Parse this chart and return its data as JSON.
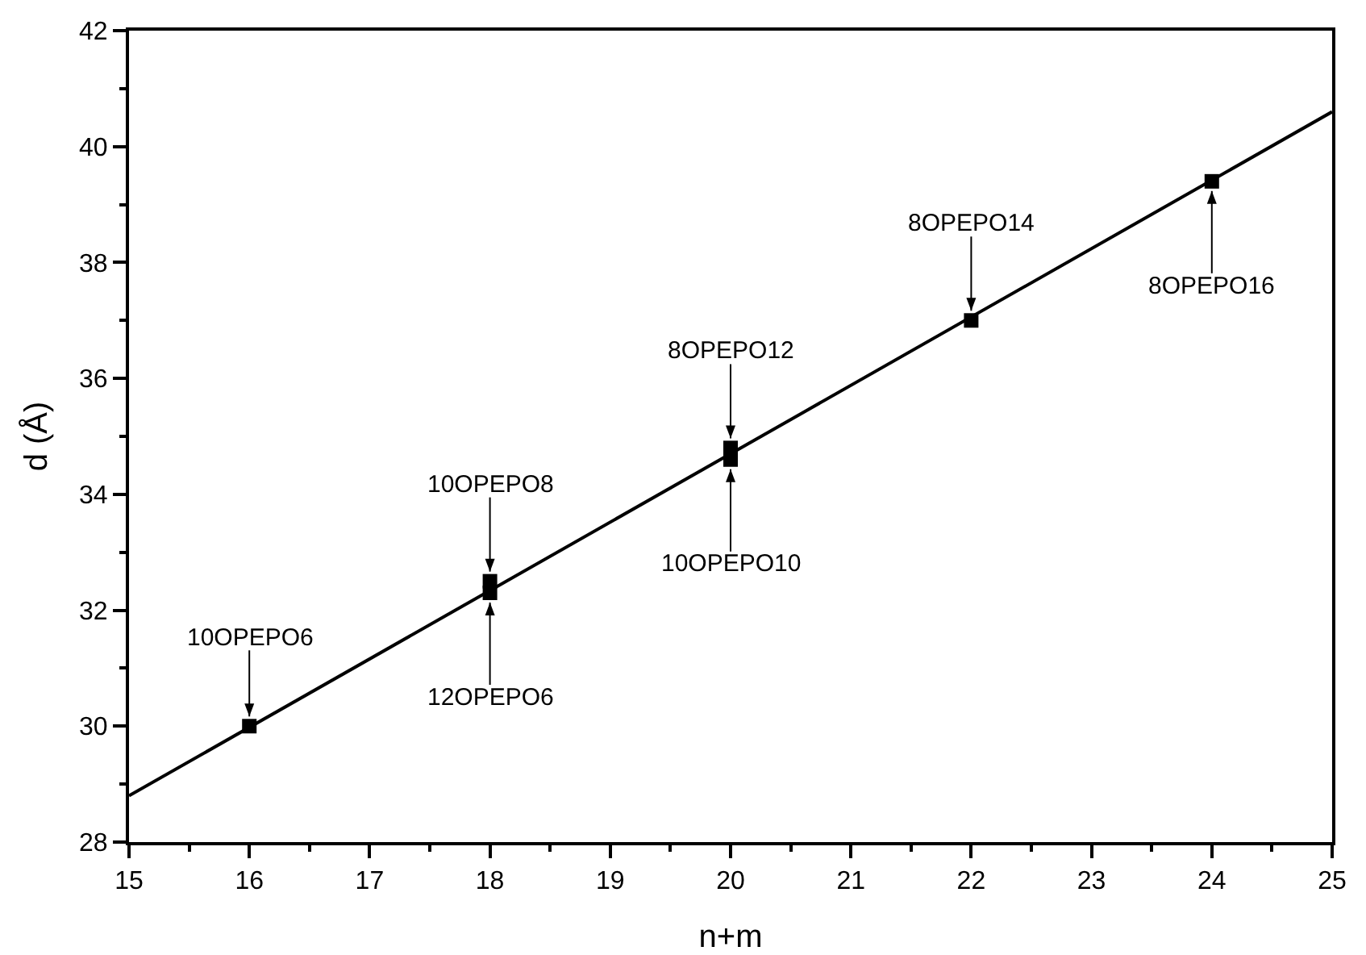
{
  "chart_data": {
    "type": "scatter",
    "xlabel": "n+m",
    "ylabel": "d (Å)",
    "xlim": [
      15,
      25
    ],
    "ylim": [
      28,
      42
    ],
    "xticks": [
      15,
      16,
      17,
      18,
      19,
      20,
      21,
      22,
      23,
      24,
      25
    ],
    "yticks": [
      28,
      30,
      32,
      34,
      36,
      38,
      40,
      42
    ],
    "grid": false,
    "marker": "square",
    "series": [
      {
        "color": "#000000",
        "x": [
          16,
          18,
          18,
          20,
          20,
          22,
          24
        ],
        "values": [
          30.0,
          32.5,
          32.3,
          34.8,
          34.6,
          37.0,
          39.4
        ]
      },
      {
        "type": "line",
        "color": "#000000",
        "x": [
          15,
          25
        ],
        "values": [
          28.8,
          40.6
        ],
        "marker": "none",
        "line_style": "solid"
      }
    ],
    "annotations": [
      {
        "text": "10OPEPO6",
        "x": 16,
        "y": 30.0
      },
      {
        "text": "10OPEPO8",
        "x": 18,
        "y": 32.5
      },
      {
        "text": "12OPEPO6",
        "x": 18,
        "y": 32.3
      },
      {
        "text": "8OPEPO12",
        "x": 20,
        "y": 34.8
      },
      {
        "text": "10OPEPO10",
        "x": 20,
        "y": 34.6
      },
      {
        "text": "8OPEPO14",
        "x": 22,
        "y": 37.0
      },
      {
        "text": "8OPEPO16",
        "x": 24,
        "y": 39.4
      }
    ]
  }
}
